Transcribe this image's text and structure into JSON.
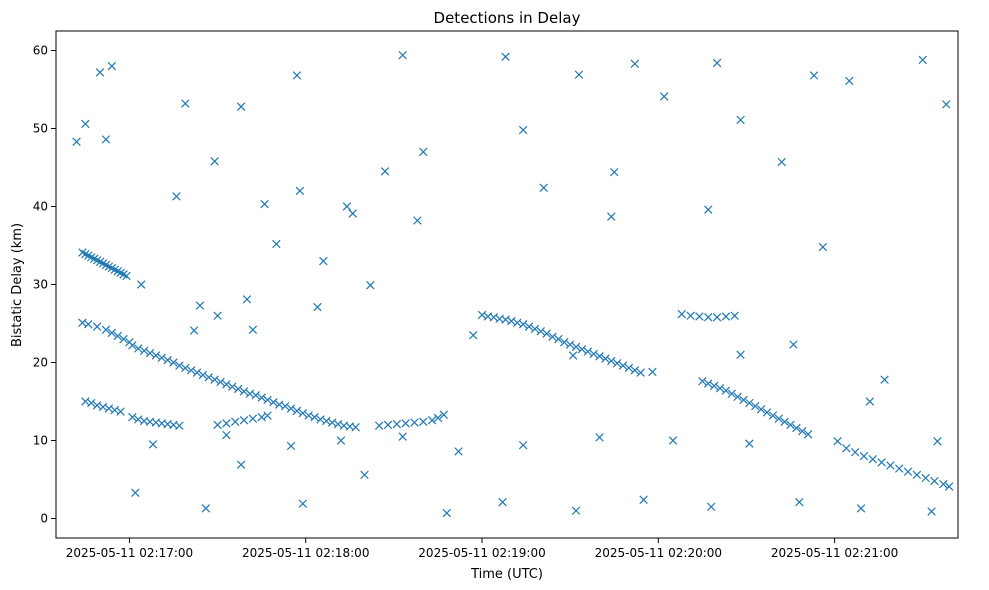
{
  "chart_data": {
    "type": "scatter",
    "title": "Detections in Delay",
    "xlabel": "Time (UTC)",
    "ylabel": "Bistatic Delay (km)",
    "marker": "x",
    "color": "#1f77b4",
    "grid": false,
    "xlim": [
      "2025-05-11 02:16:35",
      "2025-05-11 02:21:42"
    ],
    "ylim": [
      -2.5,
      62.5
    ],
    "x_ticks": [
      "2025-05-11 02:17:00",
      "2025-05-11 02:18:00",
      "2025-05-11 02:19:00",
      "2025-05-11 02:20:00",
      "2025-05-11 02:21:00"
    ],
    "y_ticks": [
      0,
      10,
      20,
      30,
      40,
      50,
      60
    ],
    "series": [
      {
        "points": [
          [
            "2025-05-11 02:16:44",
            34.1
          ],
          [
            "2025-05-11 02:16:45",
            33.9
          ],
          [
            "2025-05-11 02:16:46",
            33.7
          ],
          [
            "2025-05-11 02:16:47",
            33.5
          ],
          [
            "2025-05-11 02:16:48",
            33.3
          ],
          [
            "2025-05-11 02:16:49",
            33.1
          ],
          [
            "2025-05-11 02:16:50",
            32.9
          ],
          [
            "2025-05-11 02:16:51",
            32.7
          ],
          [
            "2025-05-11 02:16:52",
            32.5
          ],
          [
            "2025-05-11 02:16:53",
            32.3
          ],
          [
            "2025-05-11 02:16:54",
            32.1
          ],
          [
            "2025-05-11 02:16:55",
            31.9
          ],
          [
            "2025-05-11 02:16:56",
            31.7
          ],
          [
            "2025-05-11 02:16:57",
            31.5
          ],
          [
            "2025-05-11 02:16:58",
            31.3
          ],
          [
            "2025-05-11 02:16:59",
            31.1
          ],
          [
            "2025-05-11 02:16:44",
            25.1
          ],
          [
            "2025-05-11 02:16:46",
            24.9
          ],
          [
            "2025-05-11 02:16:49",
            24.6
          ],
          [
            "2025-05-11 02:16:52",
            24.2
          ],
          [
            "2025-05-11 02:16:54",
            23.8
          ],
          [
            "2025-05-11 02:16:56",
            23.4
          ],
          [
            "2025-05-11 02:16:58",
            23.0
          ],
          [
            "2025-05-11 02:17:00",
            22.6
          ],
          [
            "2025-05-11 02:17:01",
            22.2
          ],
          [
            "2025-05-11 02:17:03",
            21.8
          ],
          [
            "2025-05-11 02:17:05",
            21.5
          ],
          [
            "2025-05-11 02:17:07",
            21.2
          ],
          [
            "2025-05-11 02:17:09",
            20.9
          ],
          [
            "2025-05-11 02:17:11",
            20.6
          ],
          [
            "2025-05-11 02:17:13",
            20.3
          ],
          [
            "2025-05-11 02:17:15",
            20.0
          ],
          [
            "2025-05-11 02:17:17",
            19.6
          ],
          [
            "2025-05-11 02:17:19",
            19.3
          ],
          [
            "2025-05-11 02:17:21",
            19.0
          ],
          [
            "2025-05-11 02:17:23",
            18.7
          ],
          [
            "2025-05-11 02:17:25",
            18.4
          ],
          [
            "2025-05-11 02:17:27",
            18.1
          ],
          [
            "2025-05-11 02:17:29",
            17.8
          ],
          [
            "2025-05-11 02:17:31",
            17.5
          ],
          [
            "2025-05-11 02:17:33",
            17.2
          ],
          [
            "2025-05-11 02:17:35",
            16.9
          ],
          [
            "2025-05-11 02:17:37",
            16.6
          ],
          [
            "2025-05-11 02:17:39",
            16.3
          ],
          [
            "2025-05-11 02:17:41",
            16.0
          ],
          [
            "2025-05-11 02:17:43",
            15.8
          ],
          [
            "2025-05-11 02:17:45",
            15.5
          ],
          [
            "2025-05-11 02:17:47",
            15.2
          ],
          [
            "2025-05-11 02:17:49",
            14.9
          ],
          [
            "2025-05-11 02:17:51",
            14.6
          ],
          [
            "2025-05-11 02:17:53",
            14.4
          ],
          [
            "2025-05-11 02:17:55",
            14.1
          ],
          [
            "2025-05-11 02:17:57",
            13.8
          ],
          [
            "2025-05-11 02:17:59",
            13.5
          ],
          [
            "2025-05-11 02:18:01",
            13.2
          ],
          [
            "2025-05-11 02:18:03",
            13.0
          ],
          [
            "2025-05-11 02:18:05",
            12.7
          ],
          [
            "2025-05-11 02:18:07",
            12.5
          ],
          [
            "2025-05-11 02:18:09",
            12.3
          ],
          [
            "2025-05-11 02:18:11",
            12.1
          ],
          [
            "2025-05-11 02:18:13",
            11.9
          ],
          [
            "2025-05-11 02:18:15",
            11.8
          ],
          [
            "2025-05-11 02:18:17",
            11.7
          ],
          [
            "2025-05-11 02:16:45",
            15.0
          ],
          [
            "2025-05-11 02:16:47",
            14.8
          ],
          [
            "2025-05-11 02:16:49",
            14.5
          ],
          [
            "2025-05-11 02:16:51",
            14.3
          ],
          [
            "2025-05-11 02:16:53",
            14.1
          ],
          [
            "2025-05-11 02:16:55",
            13.9
          ],
          [
            "2025-05-11 02:16:57",
            13.7
          ],
          [
            "2025-05-11 02:17:01",
            13.0
          ],
          [
            "2025-05-11 02:17:03",
            12.7
          ],
          [
            "2025-05-11 02:17:05",
            12.5
          ],
          [
            "2025-05-11 02:17:07",
            12.4
          ],
          [
            "2025-05-11 02:17:09",
            12.3
          ],
          [
            "2025-05-11 02:17:11",
            12.2
          ],
          [
            "2025-05-11 02:17:13",
            12.1
          ],
          [
            "2025-05-11 02:17:15",
            12.0
          ],
          [
            "2025-05-11 02:17:17",
            11.9
          ],
          [
            "2025-05-11 02:17:30",
            12.0
          ],
          [
            "2025-05-11 02:17:33",
            12.2
          ],
          [
            "2025-05-11 02:17:36",
            12.4
          ],
          [
            "2025-05-11 02:17:39",
            12.6
          ],
          [
            "2025-05-11 02:17:42",
            12.8
          ],
          [
            "2025-05-11 02:17:45",
            13.0
          ],
          [
            "2025-05-11 02:17:47",
            13.2
          ],
          [
            "2025-05-11 02:18:25",
            11.9
          ],
          [
            "2025-05-11 02:18:28",
            12.0
          ],
          [
            "2025-05-11 02:18:31",
            12.1
          ],
          [
            "2025-05-11 02:18:34",
            12.2
          ],
          [
            "2025-05-11 02:18:37",
            12.3
          ],
          [
            "2025-05-11 02:18:40",
            12.4
          ],
          [
            "2025-05-11 02:18:43",
            12.6
          ],
          [
            "2025-05-11 02:18:45",
            12.9
          ],
          [
            "2025-05-11 02:18:47",
            13.3
          ],
          [
            "2025-05-11 02:16:50",
            57.2
          ],
          [
            "2025-05-11 02:16:54",
            58.0
          ],
          [
            "2025-05-11 02:17:19",
            53.2
          ],
          [
            "2025-05-11 02:17:38",
            52.8
          ],
          [
            "2025-05-11 02:17:57",
            56.8
          ],
          [
            "2025-05-11 02:18:33",
            59.4
          ],
          [
            "2025-05-11 02:19:08",
            59.2
          ],
          [
            "2025-05-11 02:19:33",
            56.9
          ],
          [
            "2025-05-11 02:19:52",
            58.3
          ],
          [
            "2025-05-11 02:20:20",
            58.4
          ],
          [
            "2025-05-11 02:20:53",
            56.8
          ],
          [
            "2025-05-11 02:21:30",
            58.8
          ],
          [
            "2025-05-11 02:16:42",
            48.3
          ],
          [
            "2025-05-11 02:16:45",
            50.6
          ],
          [
            "2025-05-11 02:16:52",
            48.6
          ],
          [
            "2025-05-11 02:17:16",
            41.3
          ],
          [
            "2025-05-11 02:17:29",
            45.8
          ],
          [
            "2025-05-11 02:17:46",
            40.3
          ],
          [
            "2025-05-11 02:17:58",
            42.0
          ],
          [
            "2025-05-11 02:18:14",
            40.0
          ],
          [
            "2025-05-11 02:18:38",
            38.2
          ],
          [
            "2025-05-11 02:19:21",
            42.4
          ],
          [
            "2025-05-11 02:19:44",
            38.7
          ],
          [
            "2025-05-11 02:20:17",
            39.6
          ],
          [
            "2025-05-11 02:20:56",
            34.8
          ],
          [
            "2025-05-11 02:21:17",
            17.8
          ],
          [
            "2025-05-11 02:17:04",
            30.0
          ],
          [
            "2025-05-11 02:17:22",
            24.1
          ],
          [
            "2025-05-11 02:17:40",
            28.1
          ],
          [
            "2025-05-11 02:18:04",
            27.1
          ],
          [
            "2025-05-11 02:18:22",
            29.9
          ],
          [
            "2025-05-11 02:18:57",
            23.5
          ],
          [
            "2025-05-11 02:19:31",
            20.9
          ],
          [
            "2025-05-11 02:19:58",
            18.8
          ],
          [
            "2025-05-11 02:20:28",
            21.0
          ],
          [
            "2025-05-11 02:20:46",
            22.3
          ],
          [
            "2025-05-11 02:21:12",
            15.0
          ],
          [
            "2025-05-11 02:17:02",
            3.3
          ],
          [
            "2025-05-11 02:17:26",
            1.3
          ],
          [
            "2025-05-11 02:17:38",
            6.9
          ],
          [
            "2025-05-11 02:17:59",
            1.9
          ],
          [
            "2025-05-11 02:18:20",
            5.6
          ],
          [
            "2025-05-11 02:18:48",
            0.7
          ],
          [
            "2025-05-11 02:19:07",
            2.1
          ],
          [
            "2025-05-11 02:19:32",
            1.0
          ],
          [
            "2025-05-11 02:19:55",
            2.4
          ],
          [
            "2025-05-11 02:20:18",
            1.5
          ],
          [
            "2025-05-11 02:20:48",
            2.1
          ],
          [
            "2025-05-11 02:21:09",
            1.3
          ],
          [
            "2025-05-11 02:21:33",
            0.9
          ],
          [
            "2025-05-11 02:19:00",
            26.1
          ],
          [
            "2025-05-11 02:19:02",
            25.9
          ],
          [
            "2025-05-11 02:19:04",
            25.8
          ],
          [
            "2025-05-11 02:19:06",
            25.6
          ],
          [
            "2025-05-11 02:19:08",
            25.5
          ],
          [
            "2025-05-11 02:19:10",
            25.3
          ],
          [
            "2025-05-11 02:19:12",
            25.1
          ],
          [
            "2025-05-11 02:19:14",
            24.9
          ],
          [
            "2025-05-11 02:19:16",
            24.6
          ],
          [
            "2025-05-11 02:19:18",
            24.3
          ],
          [
            "2025-05-11 02:19:20",
            24.0
          ],
          [
            "2025-05-11 02:19:22",
            23.7
          ],
          [
            "2025-05-11 02:19:24",
            23.3
          ],
          [
            "2025-05-11 02:19:26",
            23.0
          ],
          [
            "2025-05-11 02:19:28",
            22.6
          ],
          [
            "2025-05-11 02:19:30",
            22.3
          ],
          [
            "2025-05-11 02:19:32",
            22.0
          ],
          [
            "2025-05-11 02:19:34",
            21.7
          ],
          [
            "2025-05-11 02:19:36",
            21.4
          ],
          [
            "2025-05-11 02:19:38",
            21.1
          ],
          [
            "2025-05-11 02:19:40",
            20.8
          ],
          [
            "2025-05-11 02:19:42",
            20.5
          ],
          [
            "2025-05-11 02:19:44",
            20.2
          ],
          [
            "2025-05-11 02:19:46",
            19.9
          ],
          [
            "2025-05-11 02:19:48",
            19.6
          ],
          [
            "2025-05-11 02:19:50",
            19.3
          ],
          [
            "2025-05-11 02:19:52",
            19.0
          ],
          [
            "2025-05-11 02:19:54",
            18.7
          ],
          [
            "2025-05-11 02:20:08",
            26.2
          ],
          [
            "2025-05-11 02:20:11",
            26.0
          ],
          [
            "2025-05-11 02:20:14",
            25.9
          ],
          [
            "2025-05-11 02:20:17",
            25.8
          ],
          [
            "2025-05-11 02:20:20",
            25.8
          ],
          [
            "2025-05-11 02:20:23",
            25.9
          ],
          [
            "2025-05-11 02:20:26",
            26.0
          ],
          [
            "2025-05-11 02:20:15",
            17.6
          ],
          [
            "2025-05-11 02:20:17",
            17.3
          ],
          [
            "2025-05-11 02:20:19",
            17.0
          ],
          [
            "2025-05-11 02:20:21",
            16.7
          ],
          [
            "2025-05-11 02:20:23",
            16.4
          ],
          [
            "2025-05-11 02:20:25",
            16.0
          ],
          [
            "2025-05-11 02:20:27",
            15.6
          ],
          [
            "2025-05-11 02:20:29",
            15.2
          ],
          [
            "2025-05-11 02:20:31",
            14.8
          ],
          [
            "2025-05-11 02:20:33",
            14.4
          ],
          [
            "2025-05-11 02:20:35",
            14.0
          ],
          [
            "2025-05-11 02:20:37",
            13.6
          ],
          [
            "2025-05-11 02:20:39",
            13.2
          ],
          [
            "2025-05-11 02:20:41",
            12.8
          ],
          [
            "2025-05-11 02:20:43",
            12.4
          ],
          [
            "2025-05-11 02:20:45",
            12.0
          ],
          [
            "2025-05-11 02:20:47",
            11.6
          ],
          [
            "2025-05-11 02:20:49",
            11.2
          ],
          [
            "2025-05-11 02:20:51",
            10.8
          ],
          [
            "2025-05-11 02:21:04",
            9.0
          ],
          [
            "2025-05-11 02:21:07",
            8.5
          ],
          [
            "2025-05-11 02:21:10",
            8.0
          ],
          [
            "2025-05-11 02:21:13",
            7.6
          ],
          [
            "2025-05-11 02:21:16",
            7.2
          ],
          [
            "2025-05-11 02:21:19",
            6.8
          ],
          [
            "2025-05-11 02:21:22",
            6.4
          ],
          [
            "2025-05-11 02:21:25",
            6.0
          ],
          [
            "2025-05-11 02:21:28",
            5.6
          ],
          [
            "2025-05-11 02:21:31",
            5.2
          ],
          [
            "2025-05-11 02:21:34",
            4.8
          ],
          [
            "2025-05-11 02:21:37",
            4.4
          ],
          [
            "2025-05-11 02:21:39",
            4.1
          ],
          [
            "2025-05-11 02:17:24",
            27.3
          ],
          [
            "2025-05-11 02:17:30",
            26.0
          ],
          [
            "2025-05-11 02:17:42",
            24.2
          ],
          [
            "2025-05-11 02:17:50",
            35.2
          ],
          [
            "2025-05-11 02:18:06",
            33.0
          ],
          [
            "2025-05-11 02:18:16",
            39.1
          ],
          [
            "2025-05-11 02:18:27",
            44.5
          ],
          [
            "2025-05-11 02:18:40",
            47.0
          ],
          [
            "2025-05-11 02:19:14",
            49.8
          ],
          [
            "2025-05-11 02:19:45",
            44.4
          ],
          [
            "2025-05-11 02:20:02",
            54.1
          ],
          [
            "2025-05-11 02:20:28",
            51.1
          ],
          [
            "2025-05-11 02:20:42",
            45.7
          ],
          [
            "2025-05-11 02:21:05",
            56.1
          ],
          [
            "2025-05-11 02:21:38",
            53.1
          ],
          [
            "2025-05-11 02:17:08",
            9.5
          ],
          [
            "2025-05-11 02:17:33",
            10.7
          ],
          [
            "2025-05-11 02:17:55",
            9.3
          ],
          [
            "2025-05-11 02:18:12",
            10.0
          ],
          [
            "2025-05-11 02:18:33",
            10.5
          ],
          [
            "2025-05-11 02:18:52",
            8.6
          ],
          [
            "2025-05-11 02:19:14",
            9.4
          ],
          [
            "2025-05-11 02:19:40",
            10.4
          ],
          [
            "2025-05-11 02:20:05",
            10.0
          ],
          [
            "2025-05-11 02:20:31",
            9.6
          ],
          [
            "2025-05-11 02:21:01",
            9.9
          ],
          [
            "2025-05-11 02:21:35",
            9.9
          ]
        ]
      }
    ]
  }
}
